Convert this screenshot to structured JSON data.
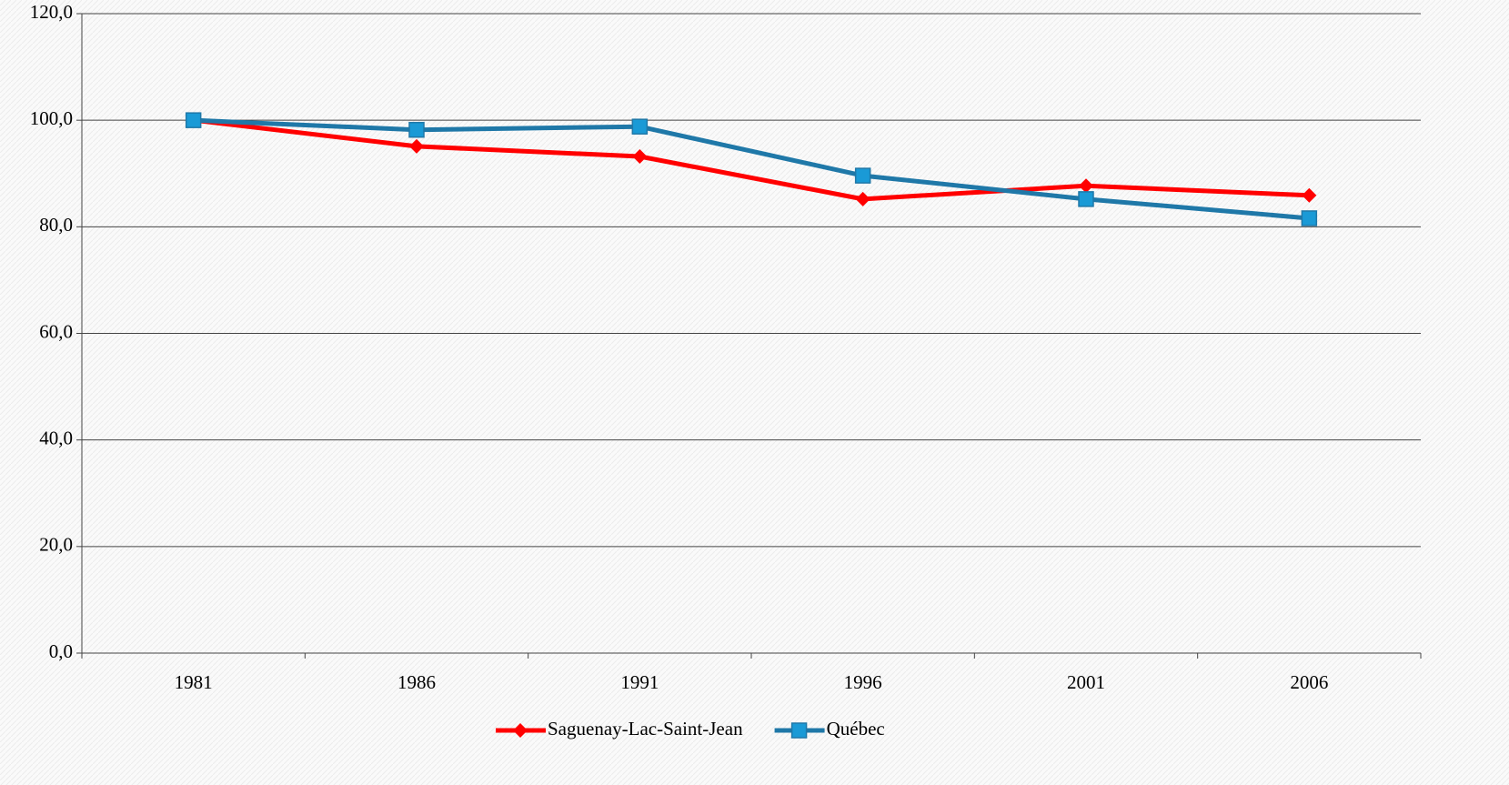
{
  "chart_data": {
    "type": "line",
    "categories": [
      "1981",
      "1986",
      "1991",
      "1996",
      "2001",
      "2006"
    ],
    "series": [
      {
        "name": "Saguenay-Lac-Saint-Jean",
        "color": "#ff0000",
        "marker": "diamond",
        "values": [
          100,
          95.1,
          93.2,
          85.2,
          87.7,
          85.9
        ]
      },
      {
        "name": "Québec",
        "color": "#1f78a8",
        "marker_fill": "#1a9ad6",
        "marker": "square",
        "values": [
          100,
          98.2,
          98.8,
          89.6,
          85.2,
          81.6
        ]
      }
    ],
    "ylim": [
      0,
      120
    ],
    "yticks": [
      {
        "value": 0,
        "label": "0,0"
      },
      {
        "value": 20,
        "label": "20,0"
      },
      {
        "value": 40,
        "label": "40,0"
      },
      {
        "value": 60,
        "label": "60,0"
      },
      {
        "value": 80,
        "label": "80,0"
      },
      {
        "value": 100,
        "label": "100,0"
      },
      {
        "value": 120,
        "label": "120,0"
      }
    ],
    "grid": true,
    "legend": "bottom"
  }
}
